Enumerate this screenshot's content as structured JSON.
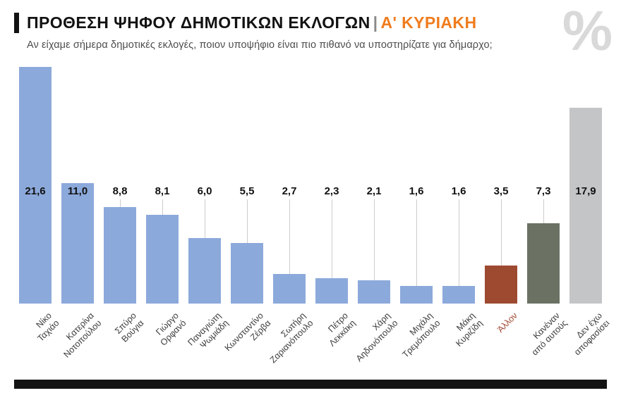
{
  "header": {
    "title": "ΠΡΟΘΕΣΗ ΨΗΦΟΥ ΔΗΜΟΤΙΚΩΝ ΕΚΛΟΓΩΝ",
    "separator": "|",
    "round_label": "Α' ΚΥΡΙΑΚΗ",
    "subtitle": "Αν είχαμε σήμερα δημοτικές εκλογές, ποιον υποψήφιο είναι πιο πιθανό να υποστηρίζατε για δήμαρχο;",
    "watermark": "%"
  },
  "colors": {
    "accent_orange": "#F07C1E",
    "bar_blue": "#8CA9DB",
    "bar_red": "#9E4A31",
    "bar_dark": "#6B7264",
    "bar_gray": "#C4C5C7",
    "tick_line_gray": "#CCCCCC",
    "watermark_gray": "#D9D9D9",
    "footer_black": "#141414"
  },
  "chart_data": {
    "type": "bar",
    "title": "ΠΡΟΘΕΣΗ ΨΗΦΟΥ ΔΗΜΟΤΙΚΩΝ ΕΚΛΟΓΩΝ | Α' ΚΥΡΙΑΚΗ",
    "subtitle": "Αν είχαμε σήμερα δημοτικές εκλογές, ποιον υποψήφιο είναι πιο πιθανό να υποστηρίζατε για δήμαρχο;",
    "unit": "%",
    "categories": [
      "Νίκο Ταχιάο",
      "Κατερίνα Νοτοπούλου",
      "Σπύρο Βούγια",
      "Γιώργο Ορφανό",
      "Παναγιώτη Ψωμιάδη",
      "Κωνσταντίνο Ζέρβα",
      "Σωτήρη Ζαριανόπουλο",
      "Πέτρο Λεκκάκη",
      "Χάρη Αηδονόπουλο",
      "Μιχάλη Τρεμόπουλο",
      "Μάκη Κυριζίδη",
      "Άλλον",
      "Κανέναν από αυτούς",
      "Δεν έχω αποφασίσει"
    ],
    "x_tick_labels": [
      "Νίκο\nΤαχιάο",
      "Κατερίνα\nΝοτοπούλου",
      "Σπύρο\nΒούγια",
      "Γιώργο\nΟρφανό",
      "Παναγιώτη\nΨωμιάδη",
      "Κωνσταντίνο\nΖέρβα",
      "Σωτήρη\nΖαριανόπουλο",
      "Πέτρο\nΛεκκάκη",
      "Χάρη\nΑηδονόπουλο",
      "Μιχάλη\nΤρεμόπουλο",
      "Μάκη\nΚυριζίδη",
      "Άλλον",
      "Κανέναν\nαπό αυτούς",
      "Δεν έχω\nαποφασίσει"
    ],
    "values": [
      21.6,
      11.0,
      8.8,
      8.1,
      6.0,
      5.5,
      2.7,
      2.3,
      2.1,
      1.6,
      1.6,
      3.5,
      7.3,
      17.9
    ],
    "value_labels": [
      "21,6",
      "11,0",
      "8,8",
      "8,1",
      "6,0",
      "5,5",
      "2,7",
      "2,3",
      "2,1",
      "1,6",
      "1,6",
      "3,5",
      "7,3",
      "17,9"
    ],
    "bar_colors": [
      "#8CA9DB",
      "#8CA9DB",
      "#8CA9DB",
      "#8CA9DB",
      "#8CA9DB",
      "#8CA9DB",
      "#8CA9DB",
      "#8CA9DB",
      "#8CA9DB",
      "#8CA9DB",
      "#8CA9DB",
      "#9E4A31",
      "#6B7264",
      "#C4C5C7"
    ],
    "tick_label_colors": [
      "#3C3C3C",
      "#3C3C3C",
      "#3C3C3C",
      "#3C3C3C",
      "#3C3C3C",
      "#3C3C3C",
      "#3C3C3C",
      "#3C3C3C",
      "#3C3C3C",
      "#3C3C3C",
      "#3C3C3C",
      "#9E4A31",
      "#3C3C3C",
      "#3C3C3C"
    ],
    "ylim": [
      0,
      21.6
    ],
    "xlabel": "",
    "ylabel": "",
    "grid": false,
    "legend": false
  }
}
